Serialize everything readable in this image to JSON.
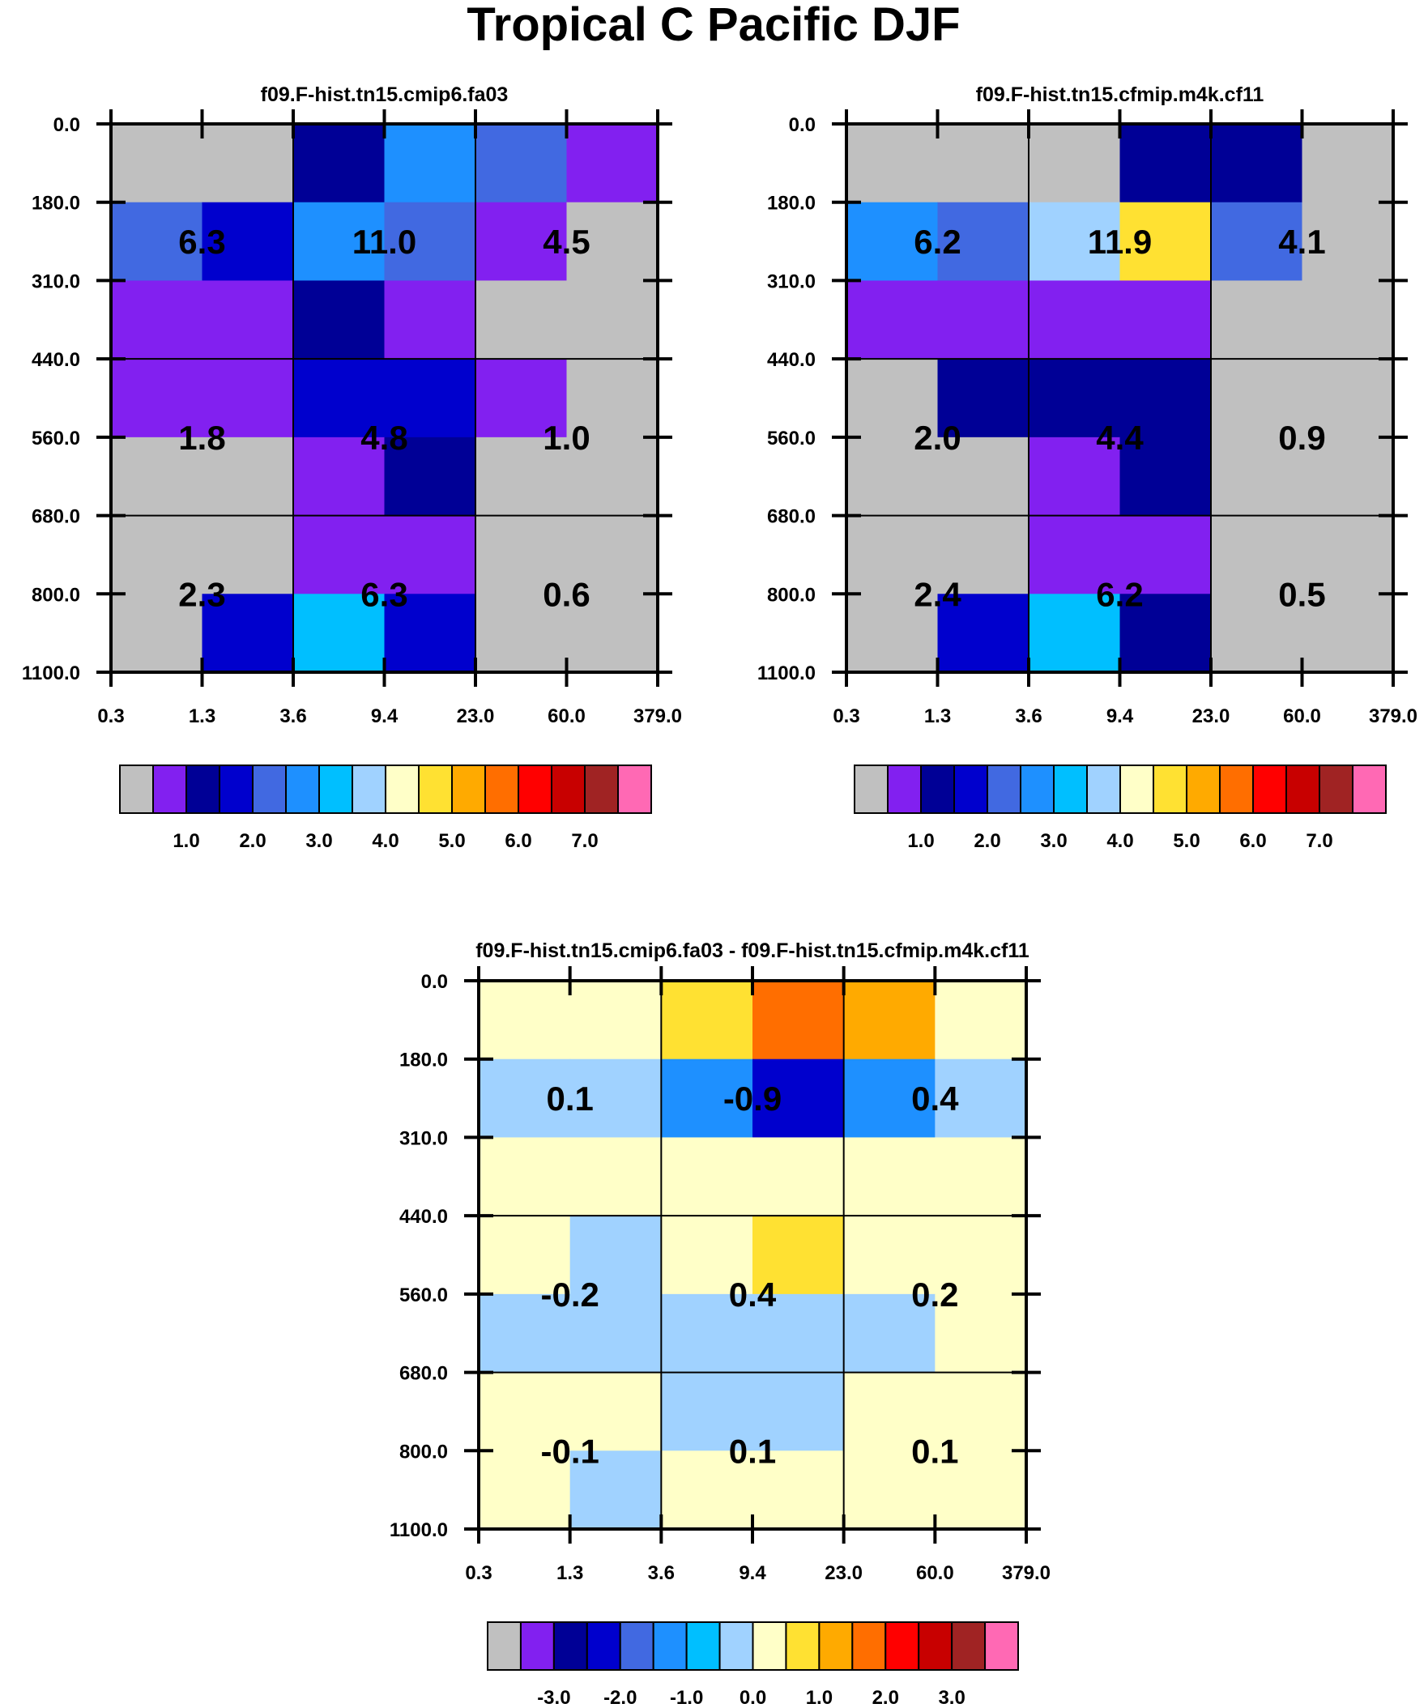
{
  "title": "Tropical C Pacific DJF",
  "colormap": [
    "#c0c0c0",
    "#8220f0",
    "#000096",
    "#0000cd",
    "#4169e1",
    "#1e90ff",
    "#00bfff",
    "#a0d2ff",
    "#ffffc8",
    "#ffe132",
    "#ffaa00",
    "#ff6e00",
    "#ff0000",
    "#c80000",
    "#a02323",
    "#ff69b4"
  ],
  "chart_data": [
    {
      "type": "heatmap",
      "title": "f09.F-hist.tn15.cmip6.fa03",
      "x_ticks": [
        "0.3",
        "1.3",
        "3.6",
        "9.4",
        "23.0",
        "60.0",
        "379.0"
      ],
      "y_ticks": [
        "0.0",
        "180.0",
        "310.0",
        "440.0",
        "560.0",
        "680.0",
        "800.0",
        "1100.0"
      ],
      "cell_color_levels": [
        [
          0,
          0,
          2,
          5,
          4,
          1
        ],
        [
          4,
          3,
          5,
          4,
          1,
          0
        ],
        [
          1,
          1,
          2,
          1,
          0,
          0
        ],
        [
          1,
          1,
          3,
          3,
          1,
          0
        ],
        [
          0,
          0,
          1,
          2,
          0,
          0
        ],
        [
          0,
          0,
          1,
          1,
          0,
          0
        ],
        [
          0,
          3,
          6,
          3,
          0,
          0
        ]
      ],
      "block_values": [
        [
          "6.3",
          "11.0",
          "4.5"
        ],
        [
          "1.8",
          "4.8",
          "1.0"
        ],
        [
          "2.3",
          "6.3",
          "0.6"
        ]
      ],
      "colorbar_labels": [
        "1.0",
        "2.0",
        "3.0",
        "4.0",
        "5.0",
        "6.0",
        "7.0"
      ]
    },
    {
      "type": "heatmap",
      "title": "f09.F-hist.tn15.cfmip.m4k.cf11",
      "x_ticks": [
        "0.3",
        "1.3",
        "3.6",
        "9.4",
        "23.0",
        "60.0",
        "379.0"
      ],
      "y_ticks": [
        "0.0",
        "180.0",
        "310.0",
        "440.0",
        "560.0",
        "680.0",
        "800.0",
        "1100.0"
      ],
      "cell_color_levels": [
        [
          0,
          0,
          0,
          2,
          2,
          0
        ],
        [
          5,
          4,
          7,
          9,
          4,
          0
        ],
        [
          1,
          1,
          1,
          1,
          0,
          0
        ],
        [
          0,
          2,
          2,
          2,
          0,
          0
        ],
        [
          0,
          0,
          1,
          2,
          0,
          0
        ],
        [
          0,
          0,
          1,
          1,
          0,
          0
        ],
        [
          0,
          3,
          6,
          2,
          0,
          0
        ]
      ],
      "block_values": [
        [
          "6.2",
          "11.9",
          "4.1"
        ],
        [
          "2.0",
          "4.4",
          "0.9"
        ],
        [
          "2.4",
          "6.2",
          "0.5"
        ]
      ],
      "colorbar_labels": [
        "1.0",
        "2.0",
        "3.0",
        "4.0",
        "5.0",
        "6.0",
        "7.0"
      ]
    },
    {
      "type": "heatmap",
      "title": "f09.F-hist.tn15.cmip6.fa03 - f09.F-hist.tn15.cfmip.m4k.cf11",
      "x_ticks": [
        "0.3",
        "1.3",
        "3.6",
        "9.4",
        "23.0",
        "60.0",
        "379.0"
      ],
      "y_ticks": [
        "0.0",
        "180.0",
        "310.0",
        "440.0",
        "560.0",
        "680.0",
        "800.0",
        "1100.0"
      ],
      "cell_color_levels": [
        [
          8,
          8,
          9,
          11,
          10,
          8
        ],
        [
          7,
          7,
          5,
          3,
          5,
          7
        ],
        [
          8,
          8,
          8,
          8,
          8,
          8
        ],
        [
          8,
          7,
          8,
          9,
          8,
          8
        ],
        [
          7,
          7,
          7,
          7,
          7,
          8
        ],
        [
          8,
          8,
          7,
          7,
          8,
          8
        ],
        [
          8,
          7,
          8,
          8,
          8,
          8
        ]
      ],
      "block_values": [
        [
          "0.1",
          "-0.9",
          "0.4"
        ],
        [
          "-0.2",
          "0.4",
          "0.2"
        ],
        [
          "-0.1",
          "0.1",
          "0.1"
        ]
      ],
      "colorbar_labels": [
        "-3.0",
        "-2.0",
        "-1.0",
        "0.0",
        "1.0",
        "2.0",
        "3.0"
      ]
    }
  ]
}
